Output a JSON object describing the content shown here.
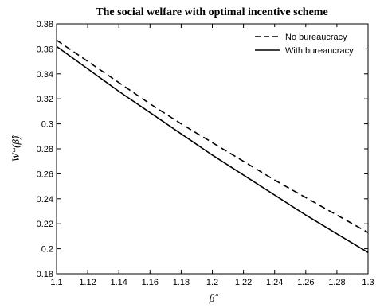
{
  "chart_data": {
    "type": "line",
    "title": "The social welfare with optimal incentive scheme",
    "xlabel": "β̂",
    "ylabel": "W*(β̂)",
    "xlim": [
      1.1,
      1.3
    ],
    "ylim": [
      0.18,
      0.38
    ],
    "xticks": [
      1.1,
      1.12,
      1.14,
      1.16,
      1.18,
      1.2,
      1.22,
      1.24,
      1.26,
      1.28,
      1.3
    ],
    "xtick_labels": [
      "1.1",
      "1.12",
      "1.14",
      "1.16",
      "1.18",
      "1.2",
      "1.22",
      "1.24",
      "1.26",
      "1.28",
      "1.3"
    ],
    "yticks": [
      0.18,
      0.2,
      0.22,
      0.24,
      0.26,
      0.28,
      0.3,
      0.32,
      0.34,
      0.36,
      0.38
    ],
    "ytick_labels": [
      "0.18",
      "0.2",
      "0.22",
      "0.24",
      "0.26",
      "0.28",
      "0.3",
      "0.32",
      "0.34",
      "0.36",
      "0.38"
    ],
    "grid": false,
    "legend_position": "top-right",
    "x": [
      1.1,
      1.12,
      1.14,
      1.16,
      1.18,
      1.2,
      1.22,
      1.24,
      1.26,
      1.28,
      1.3
    ],
    "series": [
      {
        "name": "No bureaucracy",
        "style": "dashed",
        "color": "#000000",
        "values": [
          0.367,
          0.35,
          0.333,
          0.316,
          0.3,
          0.285,
          0.27,
          0.255,
          0.241,
          0.227,
          0.213
        ]
      },
      {
        "name": "With bureaucracy",
        "style": "solid",
        "color": "#000000",
        "values": [
          0.362,
          0.344,
          0.326,
          0.309,
          0.292,
          0.275,
          0.259,
          0.243,
          0.227,
          0.212,
          0.197
        ]
      }
    ]
  }
}
